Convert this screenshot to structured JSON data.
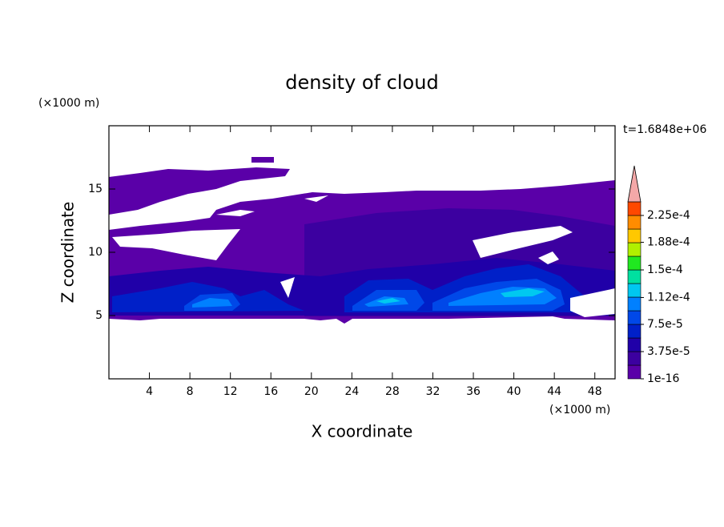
{
  "chart_data": {
    "type": "contour",
    "title": "density of cloud",
    "subtitle": "t=1.6848e+06",
    "xlabel": "X coordinate",
    "ylabel": "Z coordinate",
    "xunit": "(×1000 m)",
    "yunit": "(×1000 m)",
    "xlim": [
      0,
      50
    ],
    "ylim": [
      0,
      20
    ],
    "xticks": [
      4,
      8,
      12,
      16,
      20,
      24,
      28,
      32,
      36,
      40,
      44,
      48
    ],
    "yticks": [
      5,
      10,
      15
    ],
    "colorbar": {
      "clim": [
        0,
        0.00024375
      ],
      "colors": [
        "#5a00a8",
        "#3c00a0",
        "#2000a8",
        "#0020c8",
        "#0048e8",
        "#0080ff",
        "#00c8f0",
        "#00e0a0",
        "#20e820",
        "#b0f000",
        "#ffc800",
        "#ff8c00",
        "#ff4800"
      ],
      "over_color": "#f4a8a8",
      "ticks": [
        1e-16,
        {
          "value": 3.75e-05,
          "label": "3.75e-5"
        },
        {
          "value": 7.5e-05,
          "label": "7.5e-5"
        },
        {
          "value": 0.000112,
          "label": "1.12e-4"
        },
        {
          "value": 0.00015,
          "label": "1.5e-4"
        },
        {
          "value": 0.000188,
          "label": "1.88e-4"
        },
        {
          "value": 0.000225,
          "label": "2.25e-4"
        }
      ]
    }
  }
}
